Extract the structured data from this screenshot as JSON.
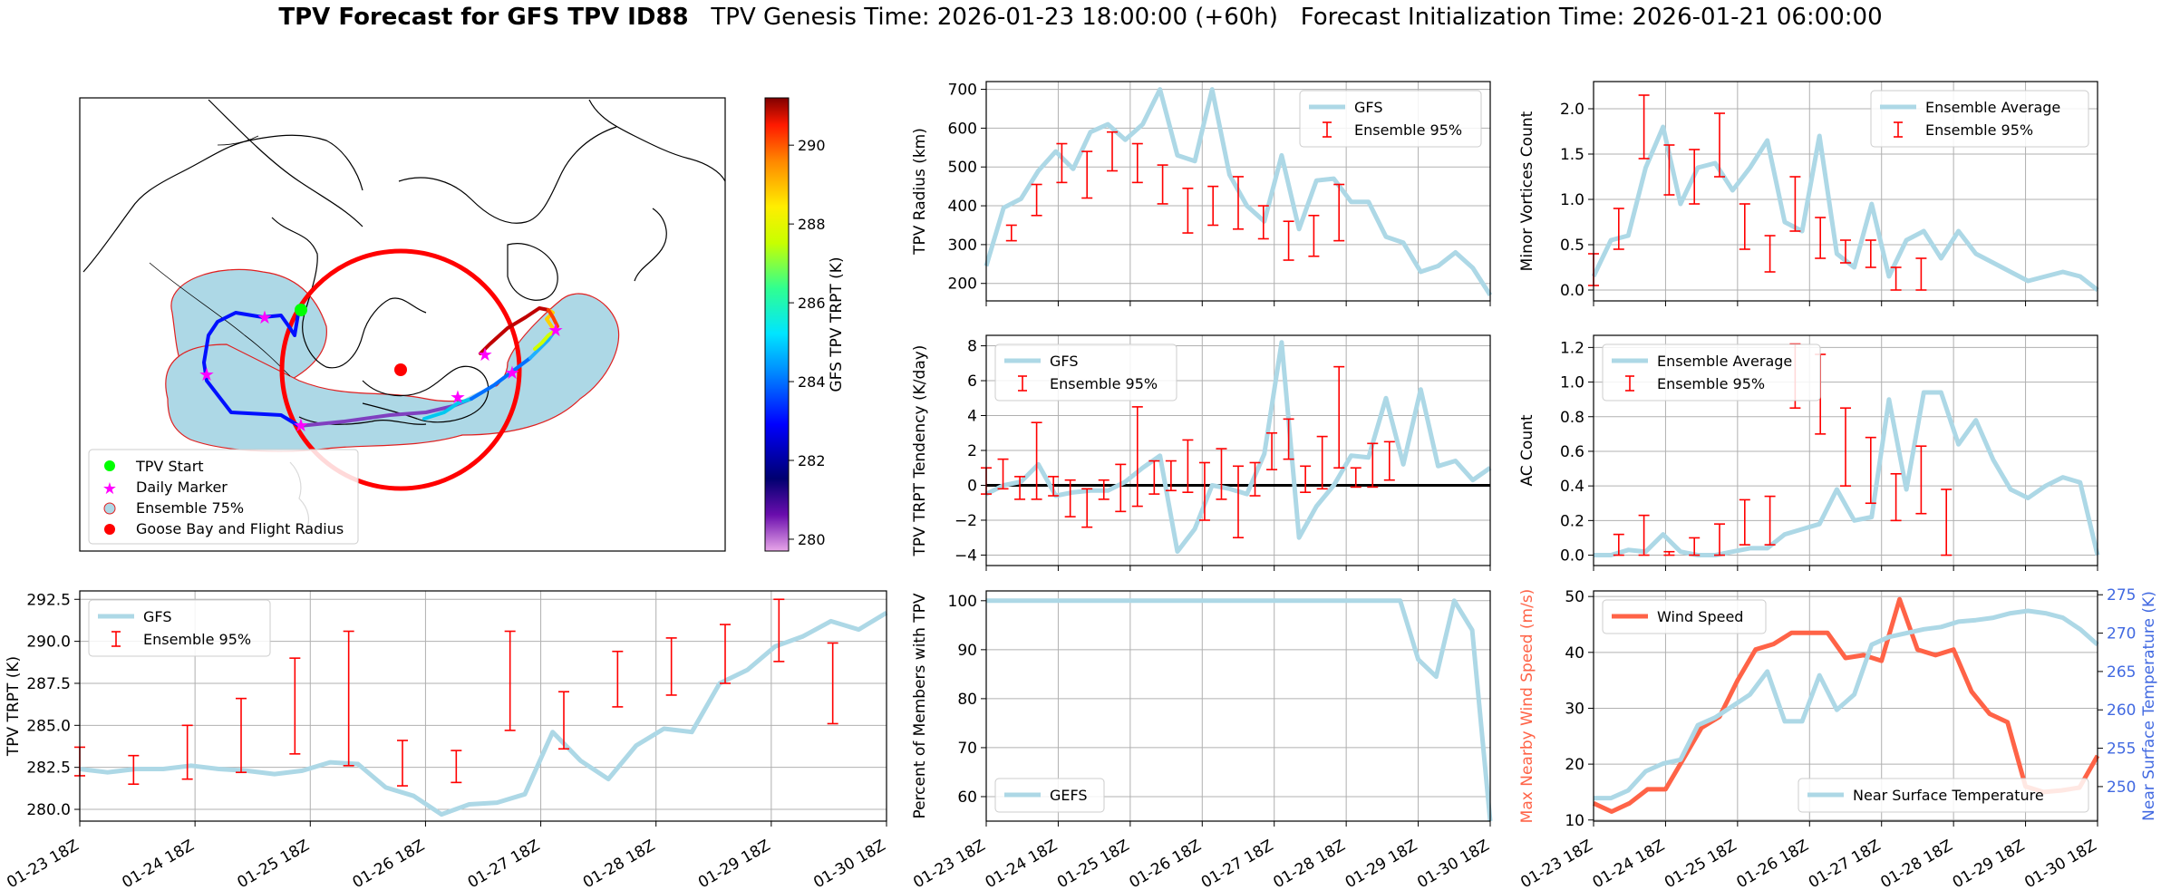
{
  "title": {
    "bold": "TPV Forecast for GFS TPV ID88",
    "genesis": "TPV Genesis Time: 2026-01-23 18:00:00 (+60h)",
    "init": "Forecast Initialization Time: 2026-01-21 06:00:00"
  },
  "colors": {
    "light_blue": "#add8e6",
    "red": "#ff0000",
    "wind": "#ff6347",
    "temp_axis": "#4169e1",
    "zero_line": "#000000"
  },
  "time_ticks": [
    "01-23 18Z",
    "01-24 18Z",
    "01-25 18Z",
    "01-26 18Z",
    "01-27 18Z",
    "01-28 18Z",
    "01-29 18Z",
    "01-30 18Z"
  ],
  "map": {
    "colorbar": {
      "label": "GFS TPV TRPT (K)",
      "ticks": [
        "280",
        "282",
        "284",
        "286",
        "288",
        "290"
      ],
      "range": [
        279.7,
        291.2
      ]
    },
    "legend": [
      "TPV Start",
      "Daily Marker",
      "Ensemble 75%",
      "Goose Bay and Flight Radius"
    ]
  },
  "chart_data": [
    {
      "id": "radius",
      "type": "line",
      "ylabel": "TPV Radius (km)",
      "ylim": [
        155,
        720
      ],
      "yticks": [
        "200",
        "300",
        "400",
        "500",
        "600",
        "700"
      ],
      "legend": [
        "GFS",
        "Ensemble 95%"
      ],
      "legend_loc": "upper right",
      "series": [
        {
          "name": "GFS",
          "values": [
            245,
            395,
            418,
            490,
            540,
            495,
            590,
            610,
            570,
            610,
            700,
            530,
            515,
            700,
            480,
            400,
            360,
            530,
            340,
            465,
            470,
            410,
            410,
            320,
            305,
            230,
            245,
            280,
            240,
            170
          ]
        }
      ],
      "errorbars": [
        {
          "t": 1.5,
          "lo": 310,
          "hi": 350
        },
        {
          "t": 3,
          "lo": 375,
          "hi": 455
        },
        {
          "t": 4.5,
          "lo": 460,
          "hi": 560
        },
        {
          "t": 6,
          "lo": 420,
          "hi": 540
        },
        {
          "t": 7.5,
          "lo": 490,
          "hi": 590
        },
        {
          "t": 9,
          "lo": 460,
          "hi": 560
        },
        {
          "t": 10.5,
          "lo": 405,
          "hi": 505
        },
        {
          "t": 12,
          "lo": 330,
          "hi": 445
        },
        {
          "t": 13.5,
          "lo": 350,
          "hi": 450
        },
        {
          "t": 15,
          "lo": 340,
          "hi": 475
        },
        {
          "t": 16.5,
          "lo": 315,
          "hi": 400
        },
        {
          "t": 18,
          "lo": 260,
          "hi": 360
        },
        {
          "t": 19.5,
          "lo": 270,
          "hi": 375
        },
        {
          "t": 21,
          "lo": 310,
          "hi": 455
        }
      ]
    },
    {
      "id": "minor",
      "type": "line",
      "ylabel": "Minor Vortices Count",
      "ylim": [
        -0.12,
        2.3
      ],
      "yticks": [
        "0.0",
        "0.5",
        "1.0",
        "1.5",
        "2.0"
      ],
      "legend": [
        "Ensemble Average",
        "Ensemble 95%"
      ],
      "legend_loc": "upper right",
      "series": [
        {
          "name": "Ensemble Average",
          "values": [
            0.15,
            0.55,
            0.6,
            1.35,
            1.8,
            0.95,
            1.35,
            1.4,
            1.1,
            1.35,
            1.65,
            0.75,
            0.65,
            1.7,
            0.4,
            0.25,
            0.95,
            0.15,
            0.55,
            0.65,
            0.35,
            0.65,
            0.4,
            0.3,
            0.2,
            0.1,
            0.15,
            0.2,
            0.15,
            0.0
          ]
        }
      ],
      "errorbars": [
        {
          "t": 0,
          "lo": 0.05,
          "hi": 0.4
        },
        {
          "t": 1.5,
          "lo": 0.45,
          "hi": 0.9
        },
        {
          "t": 3,
          "lo": 1.45,
          "hi": 2.15
        },
        {
          "t": 4.5,
          "lo": 1.05,
          "hi": 1.6
        },
        {
          "t": 6,
          "lo": 0.95,
          "hi": 1.55
        },
        {
          "t": 7.5,
          "lo": 1.25,
          "hi": 1.95
        },
        {
          "t": 9,
          "lo": 0.45,
          "hi": 0.95
        },
        {
          "t": 10.5,
          "lo": 0.2,
          "hi": 0.6
        },
        {
          "t": 12,
          "lo": 0.65,
          "hi": 1.25
        },
        {
          "t": 13.5,
          "lo": 0.35,
          "hi": 0.8
        },
        {
          "t": 15,
          "lo": 0.3,
          "hi": 0.55
        },
        {
          "t": 16.5,
          "lo": 0.25,
          "hi": 0.55
        },
        {
          "t": 18,
          "lo": 0.0,
          "hi": 0.25
        },
        {
          "t": 19.5,
          "lo": 0.0,
          "hi": 0.35
        }
      ]
    },
    {
      "id": "tendency",
      "type": "line",
      "ylabel": "TPV TRPT Tendency (K/day)",
      "ylim": [
        -4.6,
        8.6
      ],
      "yticks": [
        "−4",
        "−2",
        "0",
        "2",
        "4",
        "6",
        "8"
      ],
      "legend": [
        "GFS",
        "Ensemble 95%"
      ],
      "legend_loc": "upper left",
      "zero_line": 0,
      "series": [
        {
          "name": "GFS",
          "values": [
            -0.5,
            0.0,
            0.2,
            1.2,
            -0.6,
            -0.4,
            -0.3,
            -0.3,
            0.2,
            1.0,
            1.7,
            -3.8,
            -2.5,
            0.0,
            -0.2,
            -0.5,
            1.8,
            8.2,
            -3.0,
            -1.2,
            0.0,
            1.7,
            1.6,
            5.0,
            1.2,
            5.5,
            1.1,
            1.4,
            0.3,
            1.0
          ]
        }
      ],
      "errorbars": [
        {
          "t": 0,
          "lo": -0.5,
          "hi": 1.0
        },
        {
          "t": 1,
          "lo": -0.2,
          "hi": 1.5
        },
        {
          "t": 2,
          "lo": -0.8,
          "hi": 0.5
        },
        {
          "t": 3,
          "lo": -0.8,
          "hi": 3.6
        },
        {
          "t": 4,
          "lo": -0.6,
          "hi": 0.5
        },
        {
          "t": 5,
          "lo": -1.8,
          "hi": 0.3
        },
        {
          "t": 6,
          "lo": -2.4,
          "hi": -0.2
        },
        {
          "t": 7,
          "lo": -0.8,
          "hi": 0.3
        },
        {
          "t": 8,
          "lo": -1.5,
          "hi": 1.2
        },
        {
          "t": 9,
          "lo": -1.2,
          "hi": 4.5
        },
        {
          "t": 10,
          "lo": -0.5,
          "hi": 1.4
        },
        {
          "t": 11,
          "lo": -0.3,
          "hi": 1.4
        },
        {
          "t": 12,
          "lo": -0.4,
          "hi": 2.6
        },
        {
          "t": 13,
          "lo": -2.0,
          "hi": 1.3
        },
        {
          "t": 14,
          "lo": -0.8,
          "hi": 2.1
        },
        {
          "t": 15,
          "lo": -3.0,
          "hi": 1.1
        },
        {
          "t": 16,
          "lo": -0.6,
          "hi": 1.3
        },
        {
          "t": 17,
          "lo": 0.9,
          "hi": 3.0
        },
        {
          "t": 18,
          "lo": 1.5,
          "hi": 3.8
        },
        {
          "t": 19,
          "lo": -0.4,
          "hi": 1.1
        },
        {
          "t": 20,
          "lo": -0.2,
          "hi": 2.8
        },
        {
          "t": 21,
          "lo": 1.0,
          "hi": 6.8
        },
        {
          "t": 22,
          "lo": -0.1,
          "hi": 1.0
        },
        {
          "t": 23,
          "lo": -0.1,
          "hi": 2.4
        },
        {
          "t": 24,
          "lo": 0.3,
          "hi": 2.5
        }
      ]
    },
    {
      "id": "ac",
      "type": "line",
      "ylabel": "AC Count",
      "ylim": [
        -0.06,
        1.27
      ],
      "yticks": [
        "0.0",
        "0.2",
        "0.4",
        "0.6",
        "0.8",
        "1.0",
        "1.2"
      ],
      "legend": [
        "Ensemble Average",
        "Ensemble 95%"
      ],
      "legend_loc": "upper left",
      "series": [
        {
          "name": "Ensemble Average",
          "values": [
            0.0,
            0.0,
            0.03,
            0.02,
            0.12,
            0.02,
            0.0,
            0.0,
            0.02,
            0.04,
            0.04,
            0.12,
            0.15,
            0.18,
            0.38,
            0.2,
            0.22,
            0.9,
            0.38,
            0.94,
            0.94,
            0.64,
            0.78,
            0.55,
            0.38,
            0.33,
            0.4,
            0.45,
            0.42,
            0.0
          ]
        }
      ],
      "errorbars": [
        {
          "t": 1.5,
          "lo": 0.0,
          "hi": 0.12
        },
        {
          "t": 3,
          "lo": 0.0,
          "hi": 0.23
        },
        {
          "t": 4.5,
          "lo": 0.0,
          "hi": 0.02
        },
        {
          "t": 6,
          "lo": 0.0,
          "hi": 0.1
        },
        {
          "t": 7.5,
          "lo": 0.0,
          "hi": 0.18
        },
        {
          "t": 9,
          "lo": 0.06,
          "hi": 0.32
        },
        {
          "t": 10.5,
          "lo": 0.06,
          "hi": 0.34
        },
        {
          "t": 12,
          "lo": 0.85,
          "hi": 1.22
        },
        {
          "t": 13.5,
          "lo": 0.7,
          "hi": 1.16
        },
        {
          "t": 15,
          "lo": 0.4,
          "hi": 0.85
        },
        {
          "t": 16.5,
          "lo": 0.3,
          "hi": 0.68
        },
        {
          "t": 18,
          "lo": 0.2,
          "hi": 0.47
        },
        {
          "t": 19.5,
          "lo": 0.24,
          "hi": 0.63
        },
        {
          "t": 21,
          "lo": 0.0,
          "hi": 0.38
        }
      ]
    },
    {
      "id": "trpt",
      "type": "line",
      "ylabel": "TPV TRPT (K)",
      "ylim": [
        279.3,
        293.0
      ],
      "yticks": [
        "280.0",
        "282.5",
        "285.0",
        "287.5",
        "290.0",
        "292.5"
      ],
      "xticks": true,
      "legend": [
        "GFS",
        "Ensemble 95%"
      ],
      "legend_loc": "upper left",
      "series": [
        {
          "name": "GFS",
          "values": [
            282.4,
            282.2,
            282.4,
            282.4,
            282.6,
            282.4,
            282.3,
            282.1,
            282.3,
            282.8,
            282.7,
            281.3,
            280.8,
            279.7,
            280.3,
            280.4,
            280.9,
            284.6,
            282.9,
            281.8,
            283.8,
            284.8,
            284.6,
            287.5,
            288.3,
            289.7,
            290.3,
            291.2,
            290.7,
            291.7
          ]
        }
      ],
      "errorbars": [
        {
          "t": 0,
          "lo": 282.0,
          "hi": 283.7
        },
        {
          "t": 2,
          "lo": 281.5,
          "hi": 283.2
        },
        {
          "t": 4,
          "lo": 281.8,
          "hi": 285.0
        },
        {
          "t": 6,
          "lo": 282.2,
          "hi": 286.6
        },
        {
          "t": 8,
          "lo": 283.3,
          "hi": 289.0
        },
        {
          "t": 10,
          "lo": 282.6,
          "hi": 290.6
        },
        {
          "t": 12,
          "lo": 281.4,
          "hi": 284.1
        },
        {
          "t": 14,
          "lo": 281.6,
          "hi": 283.5
        },
        {
          "t": 16,
          "lo": 284.7,
          "hi": 290.6
        },
        {
          "t": 18,
          "lo": 283.6,
          "hi": 287.0
        },
        {
          "t": 20,
          "lo": 286.1,
          "hi": 289.4
        },
        {
          "t": 22,
          "lo": 286.8,
          "hi": 290.2
        },
        {
          "t": 24,
          "lo": 287.5,
          "hi": 291.0
        },
        {
          "t": 26,
          "lo": 288.8,
          "hi": 292.5
        },
        {
          "t": 28,
          "lo": 285.1,
          "hi": 289.9
        }
      ]
    },
    {
      "id": "members",
      "type": "line",
      "ylabel": "Percent of Members with TPV",
      "ylim": [
        55,
        102
      ],
      "yticks": [
        "60",
        "70",
        "80",
        "90",
        "100"
      ],
      "xticks": true,
      "legend": [
        "GEFS"
      ],
      "legend_loc": "lower left",
      "series": [
        {
          "name": "GEFS",
          "values": [
            100,
            100,
            100,
            100,
            100,
            100,
            100,
            100,
            100,
            100,
            100,
            100,
            100,
            100,
            100,
            100,
            100,
            100,
            100,
            100,
            100,
            100,
            100,
            100,
            88,
            84.5,
            100,
            94,
            55
          ]
        }
      ]
    },
    {
      "id": "wind_temp",
      "type": "line",
      "ylabel": "Max Nearby Wind Speed (m/s)",
      "ylim": [
        9.8,
        51
      ],
      "yticks": [
        "10",
        "20",
        "30",
        "40",
        "50"
      ],
      "y2label": "Near Surface Temperature (K)",
      "y2lim": [
        245.5,
        275.5
      ],
      "y2ticks": [
        "250",
        "255",
        "260",
        "265",
        "270",
        "275"
      ],
      "xticks": true,
      "legend": [
        "Wind Speed"
      ],
      "legend_loc": "upper left",
      "legend2": [
        "Near Surface Temperature"
      ],
      "legend2_loc": "lower right",
      "series": [
        {
          "name": "Wind Speed",
          "axis": "left",
          "values": [
            13,
            11.5,
            13,
            15.5,
            15.5,
            21,
            26.5,
            28.5,
            35,
            40.5,
            41.5,
            43.5,
            43.5,
            43.5,
            39,
            39.5,
            38.5,
            49.5,
            40.5,
            39.5,
            40.5,
            33,
            29,
            27.5,
            16,
            15,
            15.3,
            15.8,
            21.5
          ]
        },
        {
          "name": "Near Surface Temperature",
          "axis": "right",
          "values": [
            248.5,
            248.5,
            249.5,
            252,
            253,
            253.5,
            258,
            259,
            260.5,
            262,
            265,
            258.5,
            258.5,
            264.5,
            260,
            262,
            268.5,
            269.5,
            270,
            270.5,
            270.8,
            271.5,
            271.7,
            272,
            272.6,
            272.9,
            272.6,
            272,
            270.5,
            268.5
          ]
        }
      ]
    }
  ]
}
